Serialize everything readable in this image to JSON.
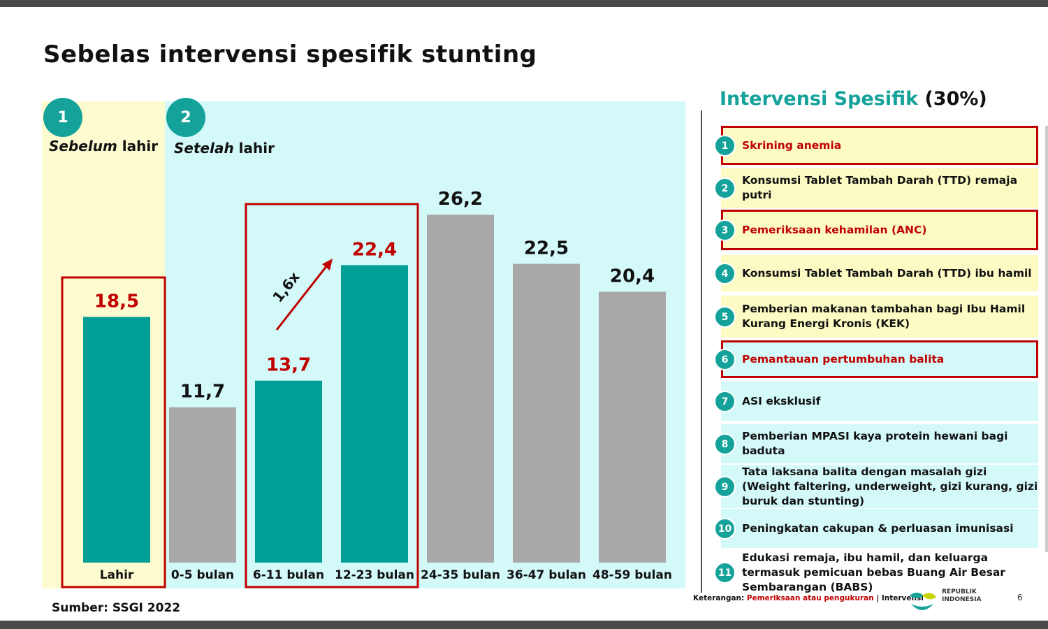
{
  "title": "Sebelas intervensi spesifik stunting",
  "phases": [
    {
      "number": "1",
      "label_em": "Sebelum",
      "label_rest": " lahir"
    },
    {
      "number": "2",
      "label_em": "Setelah",
      "label_rest": " lahir"
    }
  ],
  "chart_data": {
    "type": "bar",
    "categories": [
      "Lahir",
      "0-5 bulan",
      "6-11 bulan",
      "12-23 bulan",
      "24-35  bulan",
      "36-47  bulan",
      "48-59  bulan"
    ],
    "values": [
      18.5,
      11.7,
      13.7,
      22.4,
      26.2,
      22.5,
      20.4
    ],
    "value_labels": [
      "18,5",
      "11,7",
      "13,7",
      "22,4",
      "26,2",
      "22,5",
      "20,4"
    ],
    "highlighted": [
      true,
      false,
      true,
      true,
      false,
      false,
      false
    ],
    "annotation": "1,6x",
    "colors": {
      "highlight_bar": "#009e94",
      "normal_bar": "#a9a9a9",
      "highlight_label": "#c00000",
      "normal_label": "#111111",
      "box": "#c00000"
    }
  },
  "source": "Sumber: SSGI 2022",
  "right": {
    "title_highlight": "Intervensi Spesifik",
    "title_suffix": " (30%)",
    "items": [
      {
        "num": "1",
        "text": "Skrining anemia",
        "style": "red yellow"
      },
      {
        "num": "2",
        "text": "Konsumsi Tablet Tambah Darah (TTD) remaja putri",
        "style": "yellow"
      },
      {
        "num": "3",
        "text": "Pemeriksaan kehamilan (ANC)",
        "style": "red yellow"
      },
      {
        "num": "4",
        "text": "Konsumsi Tablet Tambah Darah (TTD) ibu hamil",
        "style": "yellow"
      },
      {
        "num": "5",
        "text": "Pemberian makanan tambahan bagi Ibu Hamil Kurang Energi Kronis (KEK)",
        "style": "yellow"
      },
      {
        "num": "6",
        "text": "Pemantauan pertumbuhan balita",
        "style": "red cyan"
      },
      {
        "num": "7",
        "text": "ASI eksklusif",
        "style": "cyan"
      },
      {
        "num": "8",
        "text": "Pemberian MPASI kaya protein hewani bagi baduta",
        "style": "cyan"
      },
      {
        "num": "9",
        "text": "Tata laksana balita dengan masalah gizi (Weight faltering, underweight, gizi kurang, gizi buruk dan stunting)",
        "style": "cyan"
      },
      {
        "num": "10",
        "text": "Peningkatan cakupan & perluasan imunisasi",
        "style": "cyan"
      },
      {
        "num": "11",
        "text": "Edukasi remaja, ibu hamil, dan keluarga termasuk pemicuan bebas Buang Air Besar Sembarangan (BABS)",
        "style": "none"
      }
    ]
  },
  "legend": {
    "prefix": "Keterangan: ",
    "red_text": "Pemeriksaan atau pengukuran",
    "sep": " | ",
    "rest": "Intervensi"
  },
  "logo_text": "REPUBLIK INDONESIA",
  "page_number": "6"
}
